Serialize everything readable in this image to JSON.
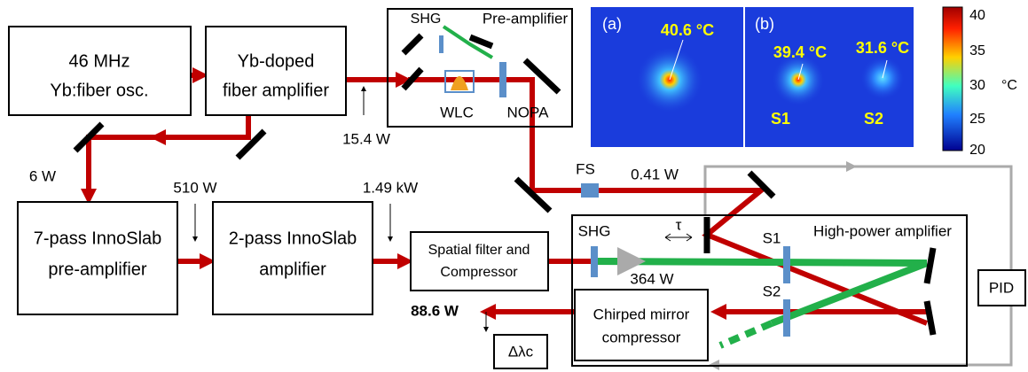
{
  "blocks": {
    "oscillator": [
      "46 MHz",
      "Yb:fiber osc."
    ],
    "fiber_amplifier": [
      "Yb-doped",
      "fiber amplifier"
    ],
    "innoslab_pre": [
      "7-pass InnoSlab",
      "pre-amplifier"
    ],
    "innoslab_amp": [
      "2-pass InnoSlab",
      "amplifier"
    ],
    "spatial_filter": [
      "Spatial filter and",
      "Compressor"
    ],
    "chirped_mirror": [
      "Chirped mirror",
      "compressor"
    ],
    "pid": "PID",
    "bandwidth": "Δλc"
  },
  "preamp": {
    "title": "Pre-amplifier",
    "shg": "SHG",
    "wlc": "WLC",
    "nopa": "NOPA"
  },
  "hp_amp": {
    "title": "High-power amplifier",
    "shg": "SHG",
    "delay": "τ",
    "s1": "S1",
    "s2": "S2",
    "green_power": "364 W",
    "output": "88.6 W"
  },
  "beam": {
    "fs": "FS",
    "fs_power": "0.41 W",
    "seed_power": "15.4 W",
    "split_power": "6 W",
    "pre_power": "510 W",
    "amp_power": "1.49 kW"
  },
  "thermal": {
    "a_label": "(a)",
    "a_temp": "40.6 °C",
    "b_label": "(b)",
    "b_temp1": "39.4 °C",
    "b_temp2": "31.6 °C",
    "b_s1": "S1",
    "b_s2": "S2",
    "scale": [
      "40",
      "35",
      "30",
      "25",
      "20"
    ],
    "unit": "°C"
  }
}
